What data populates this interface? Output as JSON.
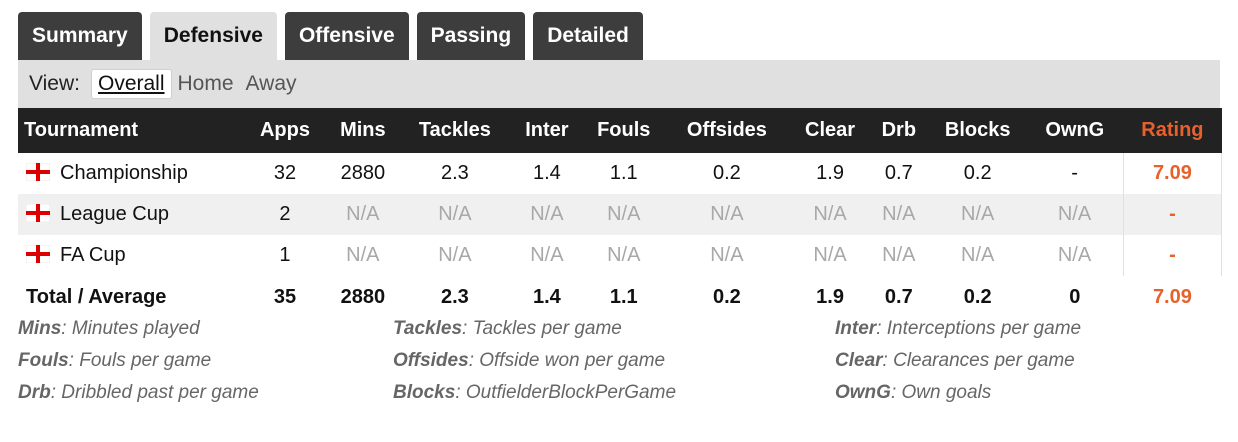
{
  "tabs": [
    {
      "label": "Summary",
      "active": false
    },
    {
      "label": "Defensive",
      "active": true
    },
    {
      "label": "Offensive",
      "active": false
    },
    {
      "label": "Passing",
      "active": false
    },
    {
      "label": "Detailed",
      "active": false
    }
  ],
  "view": {
    "label": "View:",
    "options": [
      "Overall",
      "Home",
      "Away"
    ],
    "selected": "Overall"
  },
  "table": {
    "headers": [
      "Tournament",
      "Apps",
      "Mins",
      "Tackles",
      "Inter",
      "Fouls",
      "Offsides",
      "Clear",
      "Drb",
      "Blocks",
      "OwnG",
      "Rating"
    ],
    "rows": [
      {
        "tournament": "Championship",
        "flag": "england-flag-icon",
        "apps": "32",
        "mins": "2880",
        "tackles": "2.3",
        "inter": "1.4",
        "fouls": "1.1",
        "offsides": "0.2",
        "clear": "1.9",
        "drb": "0.7",
        "blocks": "0.2",
        "owng": "-",
        "rating": "7.09"
      },
      {
        "tournament": "League Cup",
        "flag": "england-flag-icon",
        "apps": "2",
        "mins": "N/A",
        "tackles": "N/A",
        "inter": "N/A",
        "fouls": "N/A",
        "offsides": "N/A",
        "clear": "N/A",
        "drb": "N/A",
        "blocks": "N/A",
        "owng": "N/A",
        "rating": "-"
      },
      {
        "tournament": "FA Cup",
        "flag": "england-flag-icon",
        "apps": "1",
        "mins": "N/A",
        "tackles": "N/A",
        "inter": "N/A",
        "fouls": "N/A",
        "offsides": "N/A",
        "clear": "N/A",
        "drb": "N/A",
        "blocks": "N/A",
        "owng": "N/A",
        "rating": "-"
      }
    ],
    "total": {
      "label": "Total / Average",
      "apps": "35",
      "mins": "2880",
      "tackles": "2.3",
      "inter": "1.4",
      "fouls": "1.1",
      "offsides": "0.2",
      "clear": "1.9",
      "drb": "0.7",
      "blocks": "0.2",
      "owng": "0",
      "rating": "7.09"
    }
  },
  "legend": [
    [
      {
        "key": "Mins",
        "desc": "Minutes played"
      },
      {
        "key": "Tackles",
        "desc": "Tackles per game"
      },
      {
        "key": "Inter",
        "desc": "Interceptions per game"
      }
    ],
    [
      {
        "key": "Fouls",
        "desc": "Fouls per game"
      },
      {
        "key": "Offsides",
        "desc": "Offside won per game"
      },
      {
        "key": "Clear",
        "desc": "Clearances per game"
      }
    ],
    [
      {
        "key": "Drb",
        "desc": "Dribbled past per game"
      },
      {
        "key": "Blocks",
        "desc": "OutfielderBlockPerGame"
      },
      {
        "key": "OwnG",
        "desc": "Own goals"
      }
    ]
  ],
  "colors": {
    "accent": "#e8612c",
    "header_bg": "#222222",
    "tab_bg": "#3d3d3d",
    "na_text": "#a8a8a8"
  }
}
